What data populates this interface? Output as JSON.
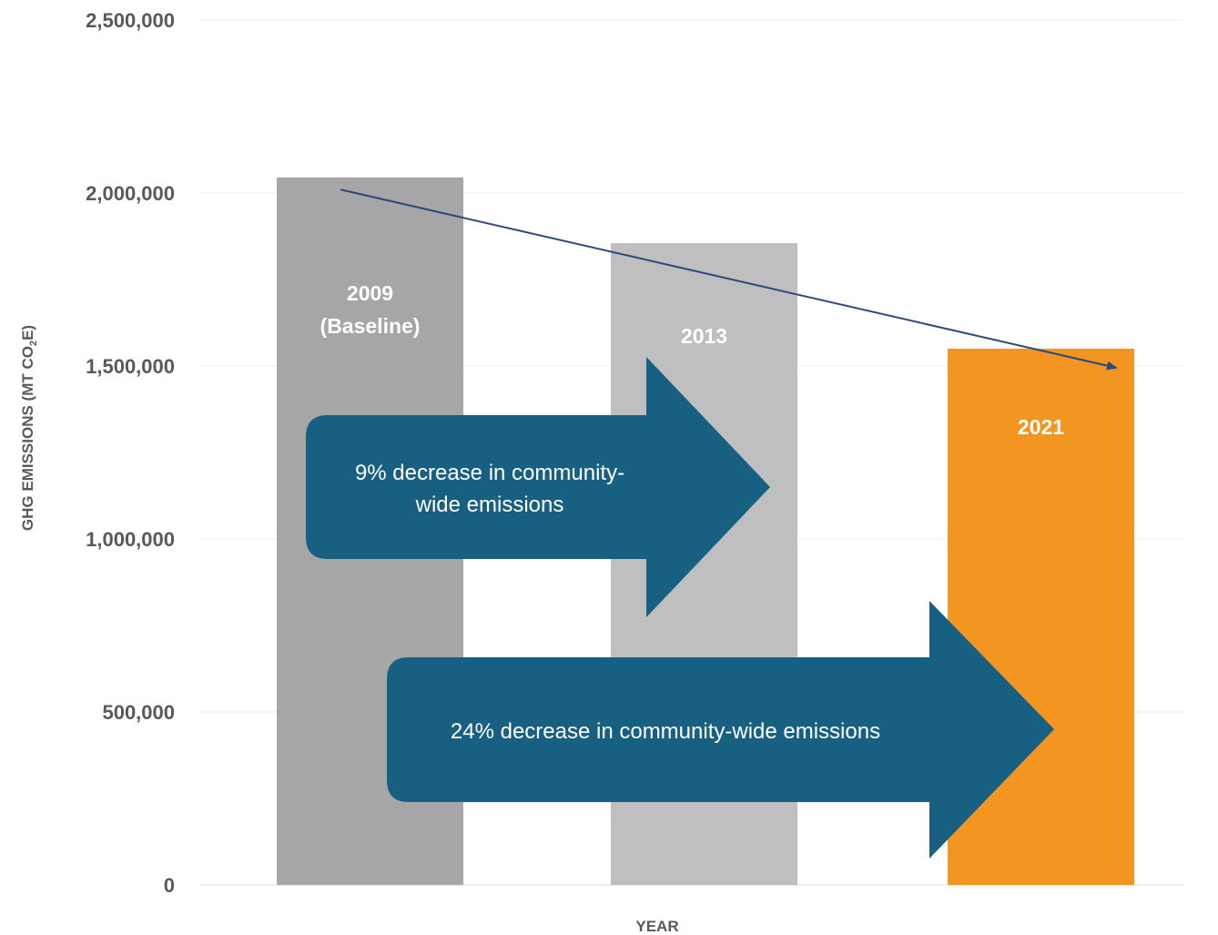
{
  "chart_data": {
    "type": "bar",
    "categories": [
      "2009\n(Baseline)",
      "2013",
      "2021"
    ],
    "values": [
      2045000,
      1855000,
      1550000
    ],
    "bar_colors": [
      "#a6a6a6",
      "#bfbfbf",
      "#f39521"
    ],
    "xlabel": "YEAR",
    "ylabel_main": "GHG EMISSIONS (MT CO",
    "ylabel_sub": "2",
    "ylabel_end": "E)",
    "ylim": [
      0,
      2500000
    ],
    "yticks": [
      "0",
      "500,000",
      "1,000,000",
      "1,500,000",
      "2,000,000",
      "2,500,000"
    ],
    "ytick_values": [
      0,
      500000,
      1000000,
      1500000,
      2000000,
      2500000
    ],
    "grid": true,
    "trend_line": {
      "from_value": 2010000,
      "to_value": 1495000,
      "color": "#2e4a7d"
    },
    "callouts": [
      {
        "lines": [
          "9% decrease in community-",
          "wide emissions"
        ],
        "color": "#176081"
      },
      {
        "lines": [
          "24% decrease in community-wide emissions"
        ],
        "color": "#176081"
      }
    ]
  }
}
